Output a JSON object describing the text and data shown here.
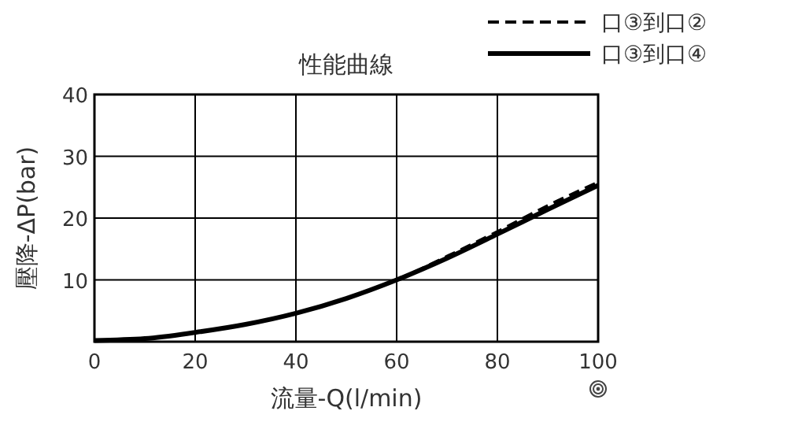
{
  "chart_data": {
    "type": "line",
    "title": "性能曲線",
    "xlabel": "流量-Q(l/min)",
    "ylabel": "壓降-ΔP(bar)",
    "x": [
      0,
      10,
      20,
      30,
      40,
      50,
      60,
      70,
      80,
      90,
      100
    ],
    "series": [
      {
        "name": "口③到口②",
        "color": "#000000",
        "line_style": "dashed",
        "values": [
          0.2,
          0.5,
          1.5,
          2.8,
          4.6,
          7,
          10,
          13.8,
          17.8,
          22,
          25.8
        ]
      },
      {
        "name": "口③到口④",
        "color": "#000000",
        "line_style": "solid",
        "values": [
          0.2,
          0.5,
          1.5,
          2.8,
          4.6,
          7,
          10,
          13.5,
          17.4,
          21.4,
          25.3
        ]
      }
    ],
    "xlim": [
      0,
      100
    ],
    "xticks": [
      0,
      20,
      40,
      60,
      80,
      100
    ],
    "ylim": [
      0,
      40
    ],
    "yticks": [
      {
        "value": 0,
        "label": null
      },
      10,
      20,
      30,
      40
    ],
    "grid": true,
    "legend": "top right",
    "marker": "none"
  }
}
